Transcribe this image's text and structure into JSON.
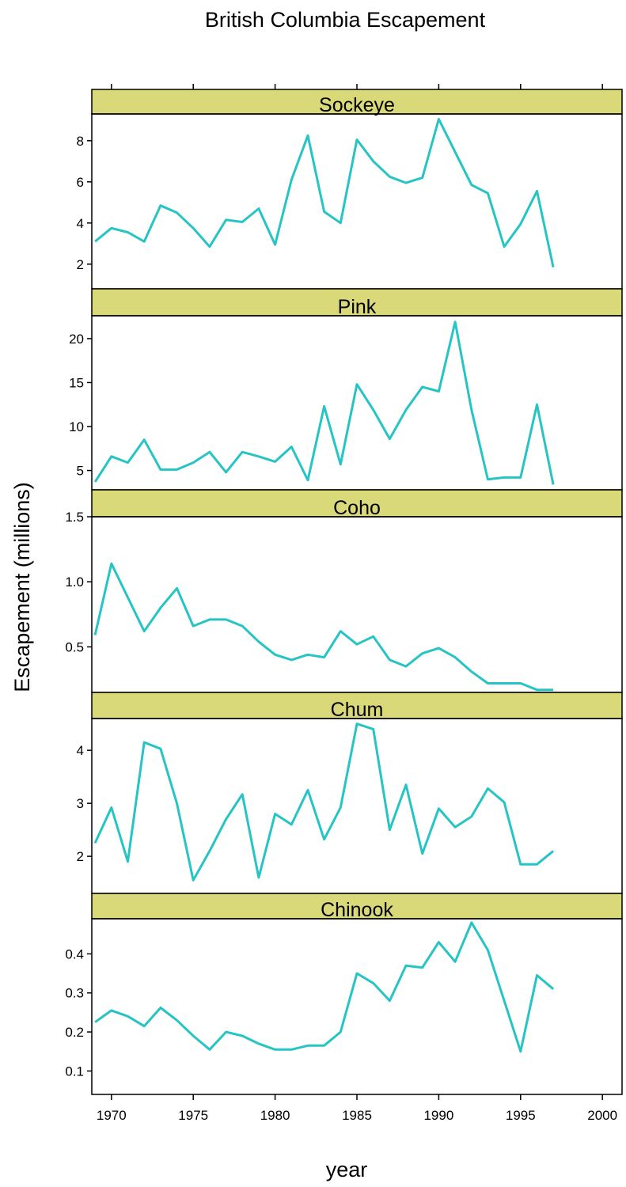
{
  "chart_data": {
    "type": "line",
    "title": "British Columbia Escapement",
    "xlabel": "year",
    "ylabel": "Escapement (millions)",
    "xlim": [
      1968.8,
      2001.2
    ],
    "x_ticks": [
      1970,
      1975,
      1980,
      1985,
      1990,
      1995,
      2000
    ],
    "line_color": "#26c4c4",
    "strip_color": "#d9d97a",
    "x": [
      1969,
      1970,
      1971,
      1972,
      1973,
      1974,
      1975,
      1976,
      1977,
      1978,
      1979,
      1980,
      1981,
      1982,
      1983,
      1984,
      1985,
      1986,
      1987,
      1988,
      1989,
      1990,
      1991,
      1992,
      1993,
      1994,
      1995,
      1996,
      1997
    ],
    "panels": [
      {
        "name": "Sockeye",
        "ylim": [
          0.8,
          9.3
        ],
        "y_ticks": [
          2,
          4,
          6,
          8
        ],
        "y_tick_labels": [
          "2",
          "4",
          "6",
          "8"
        ],
        "values": [
          3.1,
          3.75,
          3.55,
          3.1,
          4.85,
          4.5,
          3.75,
          2.85,
          4.15,
          4.05,
          4.7,
          2.95,
          6.1,
          8.25,
          4.55,
          4.0,
          8.05,
          7.0,
          6.25,
          5.95,
          6.2,
          9.05,
          7.45,
          5.85,
          5.45,
          2.85,
          3.95,
          5.55,
          1.85
        ]
      },
      {
        "name": "Pink",
        "ylim": [
          2.8,
          22.6
        ],
        "y_ticks": [
          5,
          10,
          15,
          20
        ],
        "y_tick_labels": [
          "5",
          "10",
          "15",
          "20"
        ],
        "values": [
          3.7,
          6.6,
          5.9,
          8.5,
          5.1,
          5.1,
          5.9,
          7.1,
          4.8,
          7.1,
          6.6,
          6.0,
          7.7,
          3.9,
          12.3,
          5.7,
          14.8,
          11.9,
          8.6,
          11.9,
          14.5,
          14.0,
          21.9,
          11.9,
          4.0,
          4.2,
          4.2,
          12.5,
          3.4
        ]
      },
      {
        "name": "Coho",
        "ylim": [
          0.15,
          1.5
        ],
        "y_ticks": [
          0.5,
          1.0,
          1.5
        ],
        "y_tick_labels": [
          "0.5",
          "1.0",
          "1.5"
        ],
        "values": [
          0.59,
          1.14,
          0.88,
          0.62,
          0.8,
          0.95,
          0.66,
          0.71,
          0.71,
          0.66,
          0.54,
          0.44,
          0.4,
          0.44,
          0.42,
          0.62,
          0.52,
          0.58,
          0.4,
          0.35,
          0.45,
          0.49,
          0.42,
          0.31,
          0.22,
          0.22,
          0.22,
          0.17,
          0.17
        ]
      },
      {
        "name": "Chum",
        "ylim": [
          1.3,
          4.6
        ],
        "y_ticks": [
          2,
          3,
          4
        ],
        "y_tick_labels": [
          "2",
          "3",
          "4"
        ],
        "values": [
          2.25,
          2.92,
          1.9,
          4.15,
          4.03,
          3.0,
          1.55,
          2.1,
          2.7,
          3.17,
          1.6,
          2.8,
          2.6,
          3.25,
          2.32,
          2.92,
          4.5,
          4.4,
          2.5,
          3.35,
          2.05,
          2.9,
          2.55,
          2.75,
          3.28,
          3.02,
          1.85,
          1.85,
          2.1
        ]
      },
      {
        "name": "Chinook",
        "ylim": [
          0.04,
          0.49
        ],
        "y_ticks": [
          0.1,
          0.2,
          0.3,
          0.4
        ],
        "y_tick_labels": [
          "0.1",
          "0.2",
          "0.3",
          "0.4"
        ],
        "values": [
          0.225,
          0.255,
          0.24,
          0.215,
          0.262,
          0.23,
          0.19,
          0.155,
          0.2,
          0.19,
          0.17,
          0.155,
          0.155,
          0.165,
          0.165,
          0.2,
          0.35,
          0.325,
          0.28,
          0.37,
          0.365,
          0.43,
          0.38,
          0.48,
          0.41,
          0.28,
          0.15,
          0.345,
          0.31
        ]
      }
    ]
  }
}
